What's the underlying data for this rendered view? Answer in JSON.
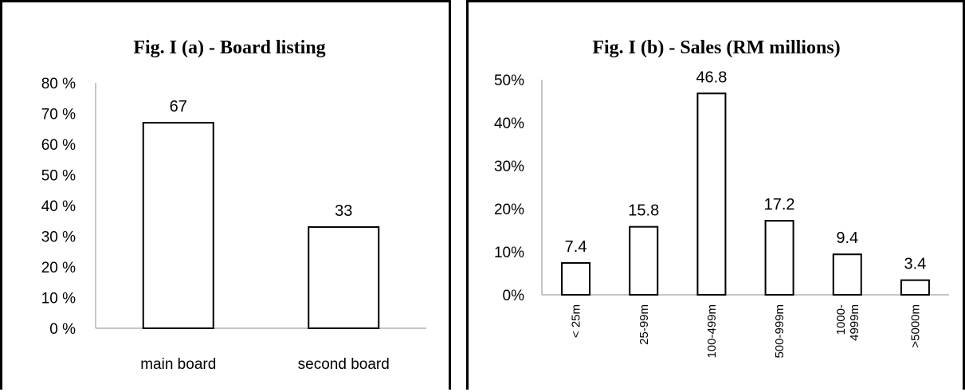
{
  "chart_data": [
    {
      "type": "bar",
      "title": "Fig. I (a) - Board listing",
      "categories": [
        "main board",
        "second board"
      ],
      "values": [
        67,
        33
      ],
      "data_labels": [
        "67",
        "33"
      ],
      "ylim": [
        0,
        80
      ],
      "yticks": [
        "0 %",
        "10 %",
        "20 %",
        "30 %",
        "40 %",
        "50 %",
        "60 %",
        "70 %",
        "80 %"
      ],
      "grid": false,
      "legend": "none",
      "bar_fill": "#ffffff",
      "bar_stroke": "#000000"
    },
    {
      "type": "bar",
      "title": "Fig. I (b) - Sales (RM millions)",
      "categories": [
        "< 25m",
        "25-99m",
        "100-499m",
        "500-999m",
        "1000-\n4999m",
        ">5000m"
      ],
      "values": [
        7.4,
        15.8,
        46.8,
        17.2,
        9.4,
        3.4
      ],
      "data_labels": [
        "7.4",
        "15.8",
        "46.8",
        "17.2",
        "9.4",
        "3.4"
      ],
      "ylim": [
        0,
        50
      ],
      "yticks": [
        "0%",
        "10%",
        "20%",
        "30%",
        "40%",
        "50%"
      ],
      "grid": false,
      "legend": "none",
      "bar_fill": "#ffffff",
      "bar_stroke": "#000000"
    }
  ]
}
